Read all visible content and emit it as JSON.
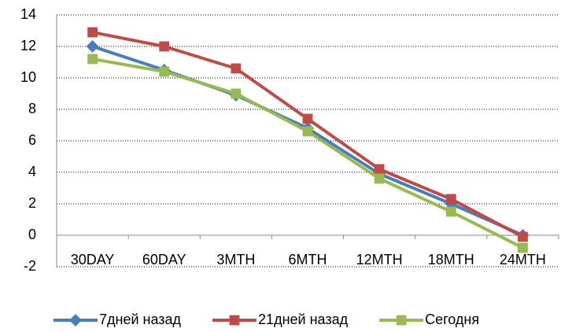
{
  "chart_data": {
    "type": "line",
    "categories": [
      "30DAY",
      "60DAY",
      "3MTH",
      "6MTH",
      "12MTH",
      "18MTH",
      "24MTH"
    ],
    "series": [
      {
        "name": "7дней назад",
        "color": "#4a7ebb",
        "marker": "diamond",
        "values": [
          12,
          10.5,
          8.9,
          6.8,
          3.9,
          2.0,
          0.0
        ]
      },
      {
        "name": "21дней назад",
        "color": "#be4b48",
        "marker": "square",
        "values": [
          12.9,
          12.0,
          10.6,
          7.4,
          4.2,
          2.3,
          -0.1
        ]
      },
      {
        "name": "Сегодня",
        "color": "#98b954",
        "marker": "square",
        "values": [
          11.2,
          10.4,
          9.0,
          6.6,
          3.6,
          1.5,
          -0.8
        ]
      }
    ],
    "ylim": [
      -2,
      14
    ],
    "yticks": [
      -2,
      0,
      2,
      4,
      6,
      8,
      10,
      12,
      14
    ],
    "grid": true,
    "legend": "bottom"
  }
}
